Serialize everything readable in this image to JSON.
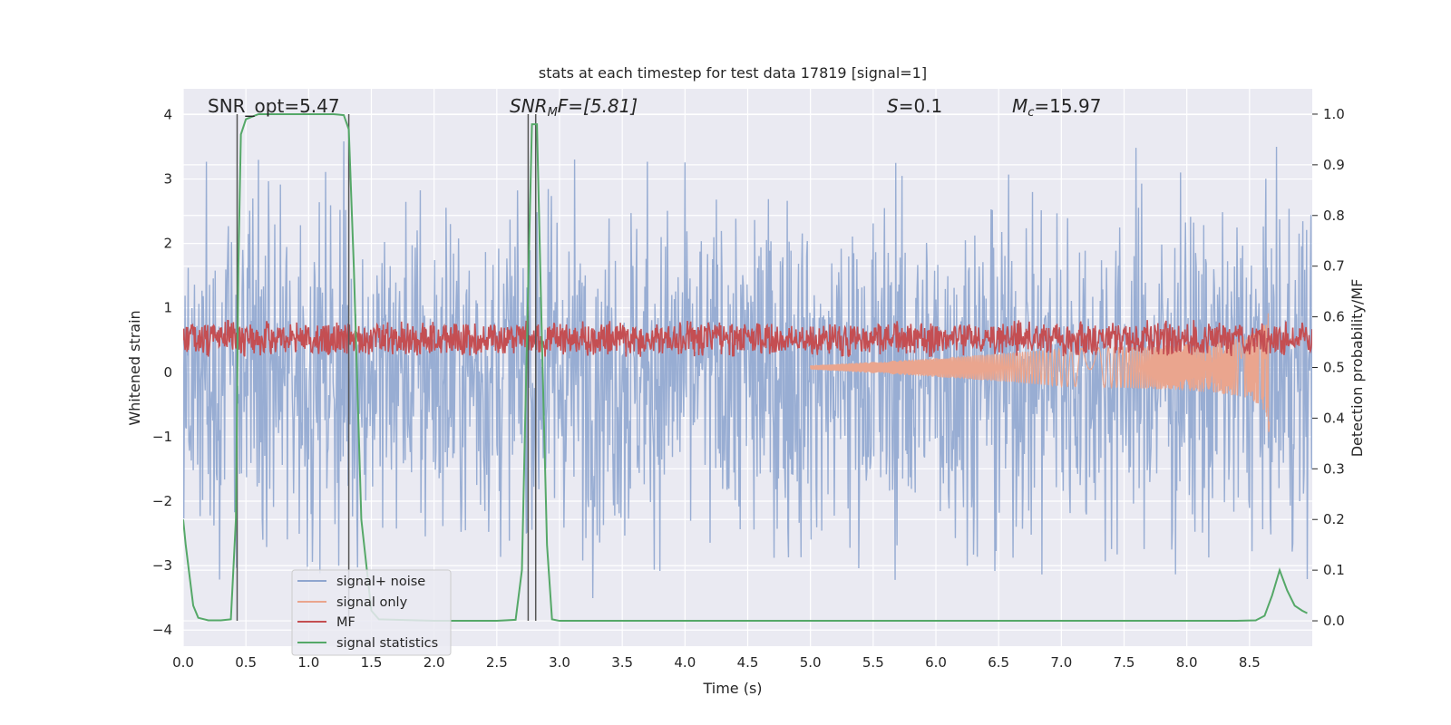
{
  "chart_data": {
    "type": "line",
    "title": "stats at each timestep for test data 17819 [signal=1]",
    "xlabel": "Time (s)",
    "ylabel": "Whitened strain",
    "y2label": "Detection probability/MF",
    "xlim": [
      0.0,
      9.0
    ],
    "ylim": [
      -4.25,
      4.4
    ],
    "y2lim": [
      -0.05,
      1.05
    ],
    "xticks": [
      "0.0",
      "0.5",
      "1.0",
      "1.5",
      "2.0",
      "2.5",
      "3.0",
      "3.5",
      "4.0",
      "4.5",
      "5.0",
      "5.5",
      "6.0",
      "6.5",
      "7.0",
      "7.5",
      "8.0",
      "8.5"
    ],
    "xtick_values": [
      0.0,
      0.5,
      1.0,
      1.5,
      2.0,
      2.5,
      3.0,
      3.5,
      4.0,
      4.5,
      5.0,
      5.5,
      6.0,
      6.5,
      7.0,
      7.5,
      8.0,
      8.5
    ],
    "yticks": [
      "4",
      "3",
      "2",
      "1",
      "0",
      "−1",
      "−2",
      "−3",
      "−4"
    ],
    "ytick_values": [
      4,
      3,
      2,
      1,
      0,
      -1,
      -2,
      -3,
      -4
    ],
    "y2ticks": [
      "1.0",
      "0.9",
      "0.8",
      "0.7",
      "0.6",
      "0.5",
      "0.4",
      "0.3",
      "0.2",
      "0.1",
      "0.0"
    ],
    "y2tick_values": [
      1.0,
      0.9,
      0.8,
      0.7,
      0.6,
      0.5,
      0.4,
      0.3,
      0.2,
      0.1,
      0.0
    ],
    "annotations": [
      {
        "text": "SNR_opt=5.47",
        "x": 0.2,
        "y": 4.05,
        "italic": false
      },
      {
        "text": "SNRMF=[5.81]",
        "x": 2.6,
        "y": 4.05,
        "italic": true
      },
      {
        "text": "S=0.1",
        "x": 5.6,
        "y": 4.05,
        "italic": true
      },
      {
        "text": "Mc=15.97",
        "x": 6.6,
        "y": 4.05,
        "italic": true
      }
    ],
    "annotation_parts": {
      "snr_mf_base": "SNR",
      "snr_mf_sub": "M",
      "snr_mf_rest": "F=[5.81]",
      "s_base": "S",
      "s_rest": "=0.1",
      "mc_base": "M",
      "mc_sub": "c",
      "mc_rest": "=15.97"
    },
    "vertical_lines": [
      0.43,
      1.32,
      2.75,
      2.81
    ],
    "legend": {
      "placement": "lower-left",
      "entries": [
        "signal+ noise",
        "signal only",
        "MF",
        "signal statistics"
      ]
    },
    "series": [
      {
        "name": "signal+ noise",
        "axis": "left",
        "color": "#8fa6cf",
        "noise_amplitude": 1.3,
        "clip": [
          -3.9,
          4.0
        ]
      },
      {
        "name": "signal only",
        "axis": "right",
        "color": "#eaa58e",
        "chirp_end": 8.66,
        "peak": 0.63,
        "trough": 0.35,
        "baseline": 0.5
      },
      {
        "name": "MF",
        "axis": "right",
        "color": "#c44e52",
        "baseline": 0.55,
        "spread": 0.02
      },
      {
        "name": "signal statistics",
        "axis": "right",
        "color": "#55a868",
        "x": [
          0.0,
          0.02,
          0.08,
          0.12,
          0.2,
          0.3,
          0.38,
          0.42,
          0.44,
          0.46,
          0.5,
          0.6,
          1.0,
          1.2,
          1.28,
          1.32,
          1.36,
          1.42,
          1.5,
          1.56,
          2.0,
          2.5,
          2.65,
          2.7,
          2.74,
          2.78,
          2.82,
          2.86,
          2.9,
          2.94,
          3.0,
          4.0,
          5.0,
          6.0,
          7.0,
          8.0,
          8.4,
          8.55,
          8.62,
          8.68,
          8.74,
          8.8,
          8.86,
          8.92,
          8.96
        ],
        "y": [
          0.2,
          0.15,
          0.03,
          0.006,
          0.001,
          0.001,
          0.003,
          0.2,
          0.7,
          0.96,
          0.99,
          1.0,
          1.0,
          1.0,
          0.998,
          0.97,
          0.7,
          0.2,
          0.02,
          0.003,
          0.0,
          0.0,
          0.002,
          0.1,
          0.55,
          0.98,
          0.98,
          0.55,
          0.15,
          0.003,
          0.0,
          0.0,
          0.0,
          0.0,
          0.0,
          0.0,
          0.0,
          0.001,
          0.01,
          0.05,
          0.1,
          0.06,
          0.03,
          0.02,
          0.015
        ]
      }
    ]
  }
}
